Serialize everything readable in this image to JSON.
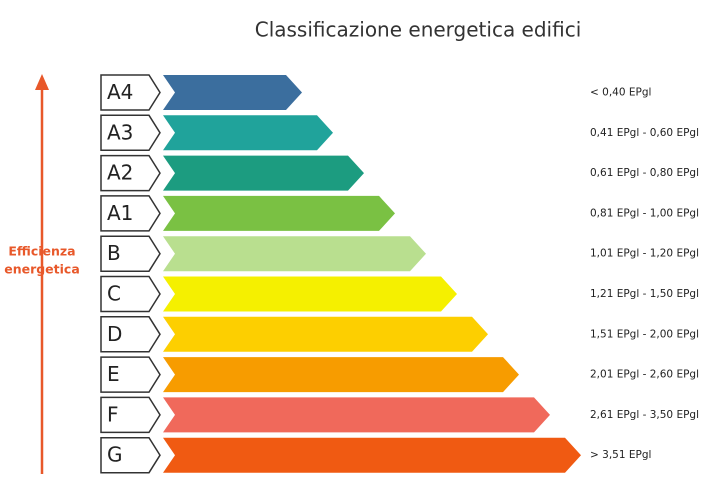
{
  "header": {
    "title": "Classificazione energetica edifici"
  },
  "axis_label": [
    "Efficienza",
    "energetica"
  ],
  "classes": [
    {
      "label": "A4",
      "range": "< 0,40 EPgl",
      "color": "#3b6e9e"
    },
    {
      "label": "A3",
      "range": "0,41 EPgl - 0,60 EPgl",
      "color": "#20a39b"
    },
    {
      "label": "A2",
      "range": "0,61 EPgl - 0,80 EPgl",
      "color": "#1c9c80"
    },
    {
      "label": "A1",
      "range": "0,81 EPgl - 1,00 EPgl",
      "color": "#7ac143"
    },
    {
      "label": "B",
      "range": "1,01 EPgl - 1,20 EPgl",
      "color": "#b9df8f"
    },
    {
      "label": "C",
      "range": "1,21 EPgl - 1,50 EPgl",
      "color": "#f5f000"
    },
    {
      "label": "D",
      "range": "1,51 EPgl - 2,00 EPgl",
      "color": "#fdcf00"
    },
    {
      "label": "E",
      "range": "2,01 EPgl - 2,60 EPgl",
      "color": "#f79c00"
    },
    {
      "label": "F",
      "range": "2,61 EPgl - 3,50 EPgl",
      "color": "#f0695b"
    },
    {
      "label": "G",
      "range": "> 3,51 EPgl",
      "color": "#f05a12"
    }
  ]
}
